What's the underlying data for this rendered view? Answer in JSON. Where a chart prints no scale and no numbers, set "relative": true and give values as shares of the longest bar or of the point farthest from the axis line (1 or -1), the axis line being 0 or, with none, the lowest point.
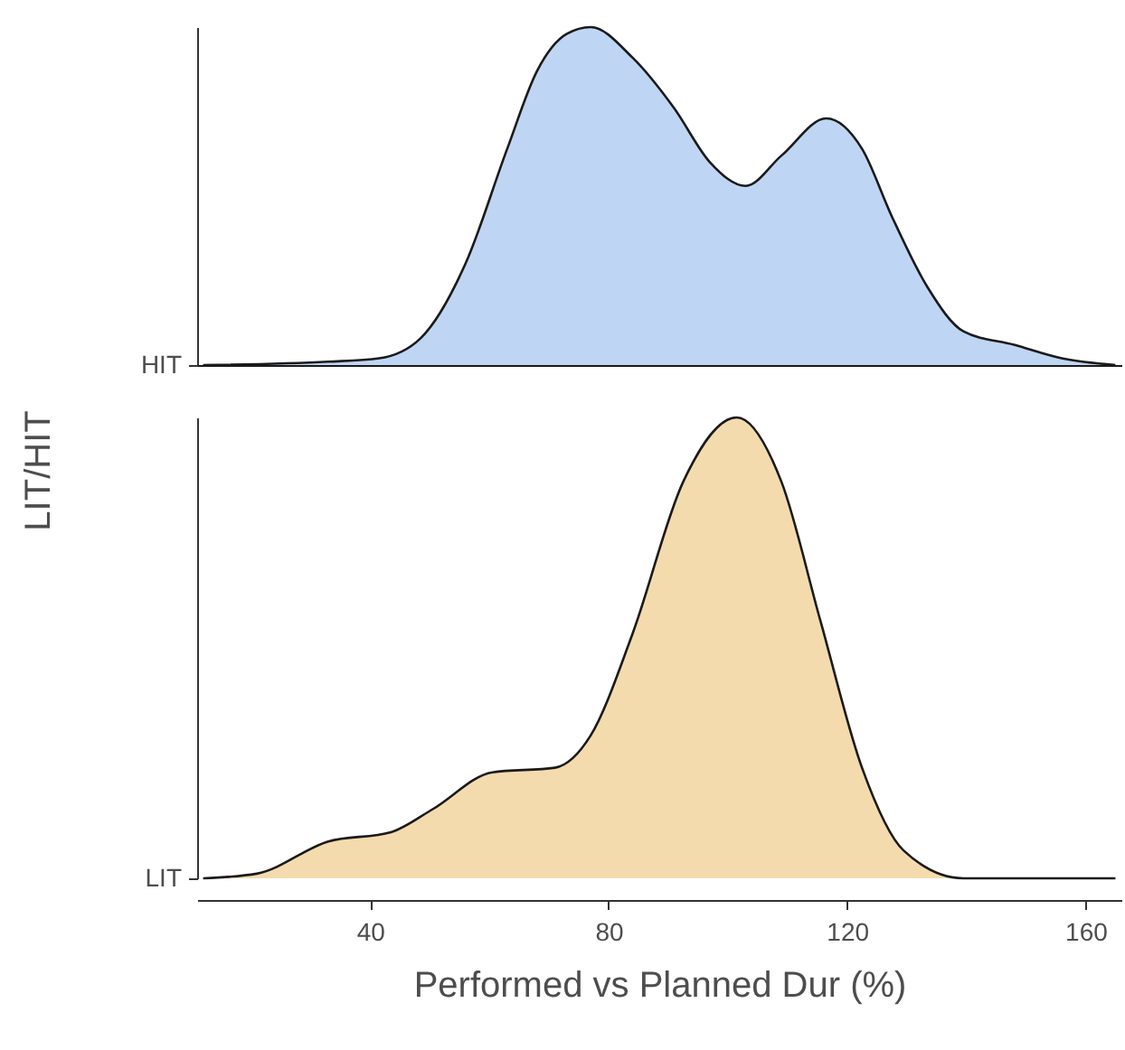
{
  "chart_data": [
    {
      "type": "area",
      "relative": true,
      "ylabel": "LIT/HIT",
      "xlim": [
        11,
        166
      ],
      "tick_labels": "y",
      "grid": false,
      "x": [
        12,
        33,
        41.5,
        48.5,
        56,
        63,
        68,
        73,
        77,
        84,
        91,
        97,
        103,
        109,
        116.5,
        122.5,
        127.5,
        133.5,
        139.5,
        148,
        156,
        165
      ],
      "series": [
        {
          "name": "HIT",
          "color": "#a4c3f0",
          "values": [
            0,
            0.01,
            0.02,
            0.08,
            0.3,
            0.64,
            0.87,
            0.98,
            1,
            0.91,
            0.76,
            0.6,
            0.53,
            0.62,
            0.73,
            0.64,
            0.44,
            0.23,
            0.1,
            0.06,
            0.02,
            0
          ]
        }
      ]
    },
    {
      "type": "area",
      "relative": true,
      "xlabel": "Performed vs Planned Dur (%)",
      "xlim": [
        11,
        166
      ],
      "xticks": [
        40,
        80,
        120,
        160
      ],
      "grid": false,
      "x": [
        12,
        21,
        33,
        43.5,
        50.5,
        60.5,
        71,
        77,
        84,
        92.5,
        101.5,
        109,
        115.5,
        122.5,
        129.5,
        139.5,
        165
      ],
      "series": [
        {
          "name": "LIT",
          "color": "#f0cc8b",
          "values": [
            0,
            0.01,
            0.08,
            0.1,
            0.15,
            0.23,
            0.24,
            0.31,
            0.53,
            0.86,
            1,
            0.86,
            0.56,
            0.24,
            0.06,
            0,
            0
          ]
        }
      ]
    }
  ]
}
